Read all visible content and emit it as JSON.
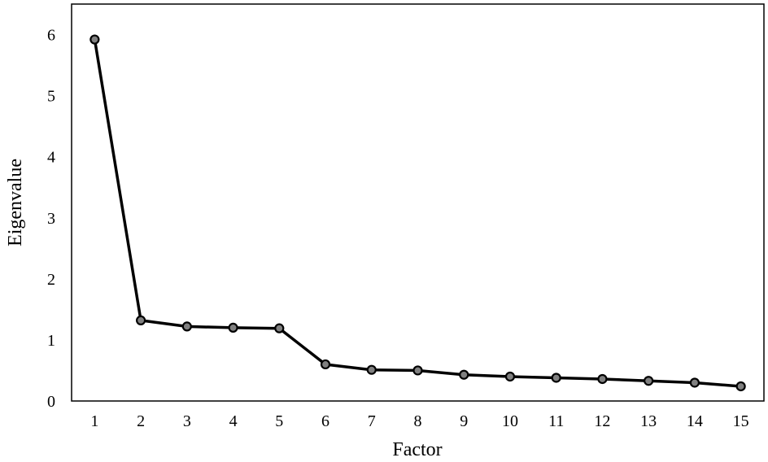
{
  "chart_data": {
    "type": "line",
    "title": "",
    "xlabel": "Factor",
    "ylabel": "Eigenvalue",
    "x": [
      1,
      2,
      3,
      4,
      5,
      6,
      7,
      8,
      9,
      10,
      11,
      12,
      13,
      14,
      15
    ],
    "x_tick_labels": [
      "1",
      "2",
      "3",
      "4",
      "5",
      "6",
      "7",
      "8",
      "9",
      "10",
      "11",
      "12",
      "13",
      "14",
      "15"
    ],
    "y_tick_labels": [
      "0",
      "1",
      "2",
      "3",
      "4",
      "5",
      "6"
    ],
    "y_ticks": [
      0,
      1,
      2,
      3,
      4,
      5,
      6
    ],
    "xlim": [
      0.5,
      15.5
    ],
    "ylim": [
      0,
      6.5
    ],
    "grid": false,
    "legend": "none",
    "series": [
      {
        "values": [
          5.92,
          1.32,
          1.22,
          1.2,
          1.19,
          0.6,
          0.51,
          0.5,
          0.43,
          0.4,
          0.38,
          0.36,
          0.33,
          0.3,
          0.24
        ],
        "line_color": "#000000",
        "marker_fill": "#808080",
        "marker_edge": "#000000"
      }
    ]
  }
}
